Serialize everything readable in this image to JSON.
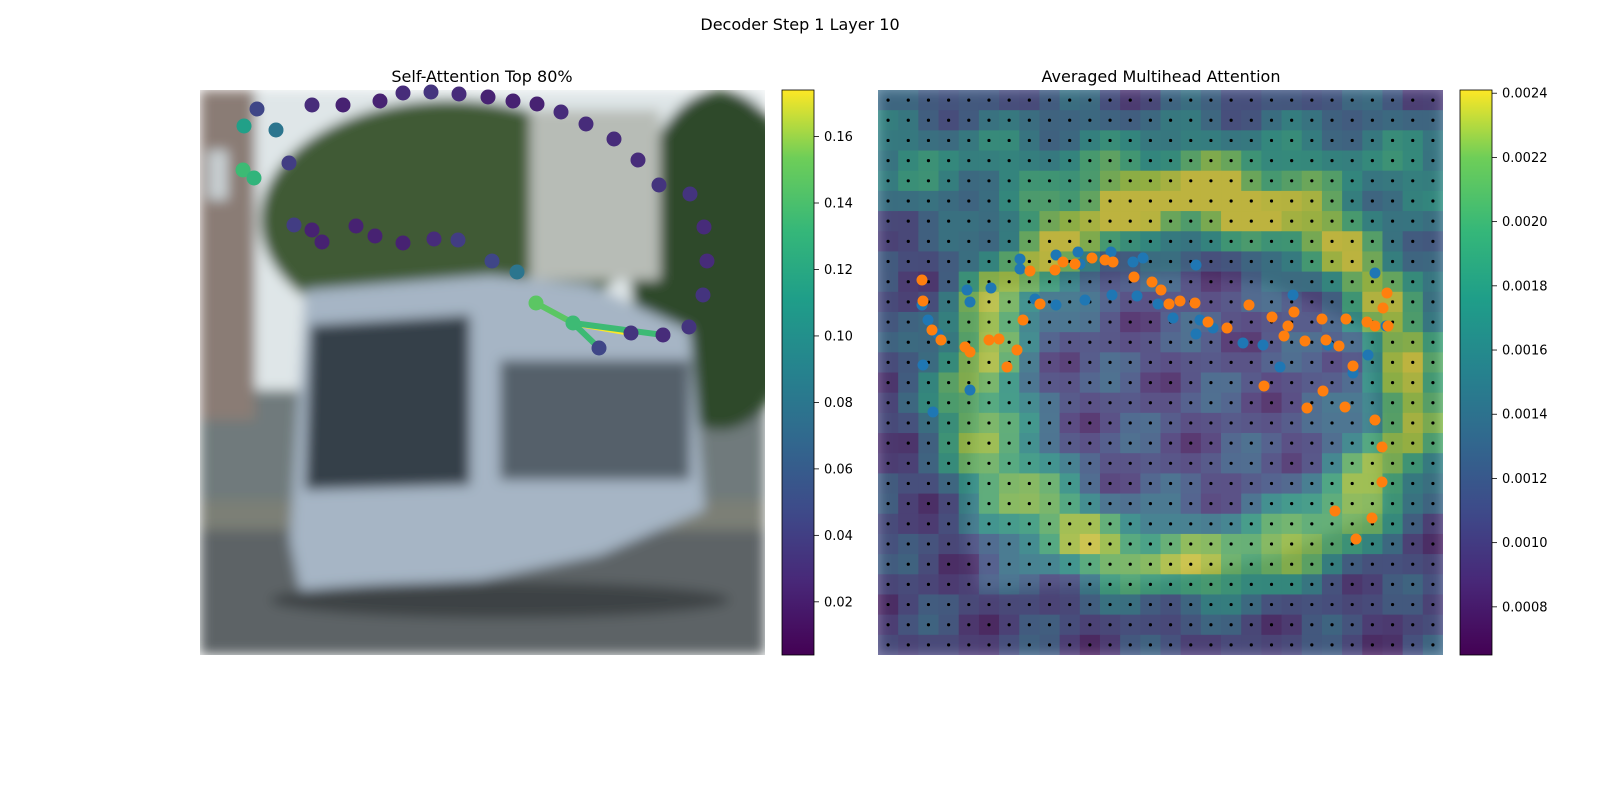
{
  "figure_title": "Decoder Step 1 Layer 10",
  "colors": {
    "scene_tone": "#6f7a7c",
    "sky": "#e7ecef",
    "tram_body": "#a7b6c6",
    "foliage": "#3f5a34",
    "road": "#5e6465",
    "query_points": "#1f77b4",
    "key_points": "#ff7f0e",
    "grid_dots": "#000000"
  },
  "chart_data": [
    {
      "type": "scatter",
      "title": "Self-Attention Top 80%",
      "colormap": "viridis",
      "colorbar": {
        "min": 0.004,
        "max": 0.174,
        "ticks": [
          "0.02",
          "0.04",
          "0.06",
          "0.08",
          "0.10",
          "0.12",
          "0.14",
          "0.16"
        ]
      },
      "axes": "off",
      "background": "blurred street scene: tram",
      "points": [
        {
          "x": 44,
          "y": 36,
          "v": 0.1
        },
        {
          "x": 43,
          "y": 80,
          "v": 0.12
        },
        {
          "x": 54,
          "y": 88,
          "v": 0.115
        },
        {
          "x": 57,
          "y": 19,
          "v": 0.04
        },
        {
          "x": 76,
          "y": 40,
          "v": 0.07
        },
        {
          "x": 89,
          "y": 73,
          "v": 0.035
        },
        {
          "x": 112,
          "y": 15,
          "v": 0.025
        },
        {
          "x": 143,
          "y": 15,
          "v": 0.02
        },
        {
          "x": 180,
          "y": 11,
          "v": 0.02
        },
        {
          "x": 203,
          "y": 3,
          "v": 0.025
        },
        {
          "x": 231,
          "y": 2,
          "v": 0.03
        },
        {
          "x": 259,
          "y": 4,
          "v": 0.025
        },
        {
          "x": 288,
          "y": 7,
          "v": 0.02
        },
        {
          "x": 313,
          "y": 11,
          "v": 0.02
        },
        {
          "x": 337,
          "y": 14,
          "v": 0.02
        },
        {
          "x": 361,
          "y": 22,
          "v": 0.025
        },
        {
          "x": 386,
          "y": 34,
          "v": 0.025
        },
        {
          "x": 414,
          "y": 49,
          "v": 0.025
        },
        {
          "x": 438,
          "y": 70,
          "v": 0.025
        },
        {
          "x": 459,
          "y": 95,
          "v": 0.03
        },
        {
          "x": 490,
          "y": 104,
          "v": 0.03
        },
        {
          "x": 504,
          "y": 137,
          "v": 0.025
        },
        {
          "x": 507,
          "y": 171,
          "v": 0.025
        },
        {
          "x": 503,
          "y": 205,
          "v": 0.03
        },
        {
          "x": 489,
          "y": 237,
          "v": 0.03
        },
        {
          "x": 463,
          "y": 245,
          "v": 0.025
        },
        {
          "x": 431,
          "y": 243,
          "v": 0.03
        },
        {
          "x": 399,
          "y": 258,
          "v": 0.04
        },
        {
          "x": 373,
          "y": 233,
          "v": 0.12
        },
        {
          "x": 336,
          "y": 213,
          "v": 0.13
        },
        {
          "x": 317,
          "y": 182,
          "v": 0.07
        },
        {
          "x": 292,
          "y": 171,
          "v": 0.04
        },
        {
          "x": 258,
          "y": 150,
          "v": 0.035
        },
        {
          "x": 234,
          "y": 149,
          "v": 0.025
        },
        {
          "x": 203,
          "y": 153,
          "v": 0.02
        },
        {
          "x": 175,
          "y": 146,
          "v": 0.02
        },
        {
          "x": 156,
          "y": 136,
          "v": 0.02
        },
        {
          "x": 122,
          "y": 152,
          "v": 0.02
        },
        {
          "x": 112,
          "y": 140,
          "v": 0.02
        },
        {
          "x": 94,
          "y": 135,
          "v": 0.035
        }
      ],
      "attention_links": [
        {
          "from": 28,
          "to": 29,
          "v": 0.13
        },
        {
          "from": 28,
          "to": 26,
          "v": 0.174
        },
        {
          "from": 28,
          "to": 25,
          "v": 0.12
        },
        {
          "from": 28,
          "to": 27,
          "v": 0.12
        }
      ]
    },
    {
      "type": "heatmap",
      "title": "Averaged Multihead Attention",
      "colormap": "viridis",
      "grid": {
        "rows": 28,
        "cols": 28
      },
      "colorbar": {
        "min": 0.00065,
        "max": 0.00241,
        "ticks": [
          "0.0008",
          "0.0010",
          "0.0012",
          "0.0014",
          "0.0016",
          "0.0018",
          "0.0020",
          "0.0022",
          "0.0024"
        ]
      },
      "axes": "off",
      "series": [
        {
          "marker": "query",
          "points": [
            [
              45,
              275
            ],
            [
              55,
              322
            ],
            [
              92,
              300
            ],
            [
              142,
              179
            ],
            [
              200,
              162
            ],
            [
              265,
              168
            ],
            [
              318,
              175
            ],
            [
              415,
              205
            ],
            [
              497,
              183
            ],
            [
              508,
              236
            ],
            [
              490,
              265
            ],
            [
              475,
              283
            ],
            [
              450,
              255
            ],
            [
              402,
              277
            ],
            [
              385,
              255
            ],
            [
              365,
              253
            ],
            [
              335,
              238
            ],
            [
              318,
              244
            ],
            [
              295,
              228
            ],
            [
              280,
              214
            ],
            [
              259,
              206
            ],
            [
              234,
              205
            ],
            [
              207,
              210
            ],
            [
              178,
              215
            ],
            [
              157,
              209
            ],
            [
              113,
              198
            ],
            [
              92,
              212
            ],
            [
              60,
              244
            ],
            [
              44,
              215
            ],
            [
              50,
              230
            ],
            [
              89,
              200
            ],
            [
              142,
              169
            ],
            [
              178,
              165
            ],
            [
              202,
              174
            ],
            [
              233,
              162
            ],
            [
              255,
              172
            ],
            [
              322,
              230
            ]
          ]
        },
        {
          "marker": "key",
          "points": [
            [
              44,
              190
            ],
            [
              45,
              211
            ],
            [
              54,
              240
            ],
            [
              63,
              250
            ],
            [
              87,
              257
            ],
            [
              92,
              262
            ],
            [
              111,
              250
            ],
            [
              121,
              249
            ],
            [
              129,
              277
            ],
            [
              139,
              260
            ],
            [
              145,
              230
            ],
            [
              152,
              181
            ],
            [
              162,
              214
            ],
            [
              177,
              180
            ],
            [
              185,
              172
            ],
            [
              197,
              174
            ],
            [
              214,
              168
            ],
            [
              227,
              170
            ],
            [
              235,
              172
            ],
            [
              256,
              187
            ],
            [
              274,
              192
            ],
            [
              283,
              200
            ],
            [
              291,
              214
            ],
            [
              302,
              211
            ],
            [
              317,
              213
            ],
            [
              330,
              232
            ],
            [
              349,
              238
            ],
            [
              371,
              215
            ],
            [
              394,
              227
            ],
            [
              406,
              246
            ],
            [
              427,
              251
            ],
            [
              448,
              250
            ],
            [
              461,
              256
            ],
            [
              475,
              276
            ],
            [
              497,
              236
            ],
            [
              505,
              218
            ],
            [
              509,
              203
            ],
            [
              510,
              236
            ],
            [
              489,
              232
            ],
            [
              468,
              229
            ],
            [
              444,
              229
            ],
            [
              416,
              222
            ],
            [
              410,
              236
            ],
            [
              386,
              296
            ],
            [
              429,
              318
            ],
            [
              445,
              301
            ],
            [
              467,
              317
            ],
            [
              497,
              330
            ],
            [
              504,
              357
            ],
            [
              504,
              392
            ],
            [
              494,
              428
            ],
            [
              478,
              449
            ],
            [
              457,
              421
            ]
          ]
        }
      ]
    }
  ]
}
